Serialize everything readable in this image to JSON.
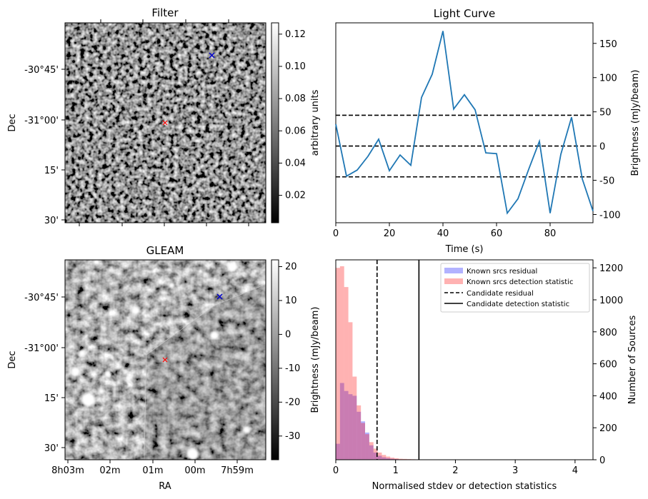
{
  "figure": {
    "colors": {
      "light_curve": "#1f77b4",
      "known_residual": "#0000ff",
      "known_detection": "#ff0000",
      "marker_candidate": "#ff0000",
      "marker_other": "#0000cc"
    }
  },
  "chart_data": [
    {
      "type": "heatmap",
      "title": "Filter",
      "xlabel": "",
      "ylabel": "Dec",
      "y_ticks": [
        "-30°45'",
        "-31°00'",
        "15'",
        "30'"
      ],
      "colorbar": {
        "label": "arbitrary units",
        "ticks": [
          "0.12",
          "0.10",
          "0.08",
          "0.06",
          "0.04",
          "0.02"
        ],
        "range": [
          0.003,
          0.127
        ]
      },
      "markers": [
        {
          "name": "candidate",
          "symbol": "x",
          "color": "red"
        },
        {
          "name": "reference",
          "symbol": "x",
          "color": "blue"
        }
      ]
    },
    {
      "type": "line",
      "title": "Light Curve",
      "xlabel": "Time (s)",
      "ylabel": "Brightness (mJy/beam)",
      "xlim": [
        0,
        96
      ],
      "ylim": [
        -112,
        180
      ],
      "x_ticks": [
        "0",
        "20",
        "40",
        "60",
        "80"
      ],
      "y_ticks": [
        "150",
        "100",
        "50",
        "0",
        "-50",
        "-100"
      ],
      "x": [
        0,
        4,
        8,
        12,
        16,
        20,
        24,
        28,
        32,
        36,
        40,
        44,
        48,
        52,
        56,
        60,
        64,
        68,
        72,
        76,
        80,
        84,
        88,
        92,
        96
      ],
      "values": [
        32,
        -44,
        -35,
        -15,
        10,
        -36,
        -13,
        -28,
        71,
        105,
        168,
        54,
        75,
        53,
        -10,
        -11,
        -98,
        -77,
        -34,
        7,
        -98,
        -12,
        42,
        -48,
        -95
      ],
      "hlines": [
        45,
        0,
        -45
      ]
    },
    {
      "type": "heatmap",
      "title": "GLEAM",
      "xlabel": "RA",
      "ylabel": "Dec",
      "x_ticks": [
        "8h03m",
        "02m",
        "01m",
        "00m",
        "7h59m"
      ],
      "y_ticks": [
        "-30°45'",
        "-31°00'",
        "15'",
        "30'"
      ],
      "colorbar": {
        "label": "Brightness (mJy/beam)",
        "ticks": [
          "20",
          "10",
          "0",
          "-10",
          "-20",
          "-30"
        ],
        "range": [
          -37,
          22
        ]
      },
      "markers": [
        {
          "name": "candidate",
          "symbol": "x",
          "color": "red"
        },
        {
          "name": "reference",
          "symbol": "x",
          "color": "blue"
        }
      ]
    },
    {
      "type": "bar",
      "title": "",
      "xlabel": "Normalised stdev or detection statistics",
      "ylabel": "Number of Sources",
      "xlim": [
        0,
        4.3
      ],
      "ylim": [
        0,
        1250
      ],
      "x_ticks": [
        "0",
        "1",
        "2",
        "3",
        "4"
      ],
      "y_ticks": [
        "1200",
        "1000",
        "800",
        "600",
        "400",
        "200",
        "0"
      ],
      "bin_width": 0.07,
      "series": [
        {
          "name": "Known srcs residual",
          "values": [
            100,
            480,
            430,
            410,
            400,
            300,
            240,
            170,
            90,
            45,
            25,
            15,
            10,
            6,
            4,
            2,
            1
          ]
        },
        {
          "name": "Known srcs detection statistic",
          "values": [
            1200,
            1210,
            1080,
            860,
            520,
            340,
            230,
            160,
            110,
            70,
            45,
            30,
            20,
            13,
            9,
            6,
            5,
            4,
            3,
            2,
            2,
            1,
            1,
            1
          ]
        }
      ],
      "vlines": [
        {
          "name": "Candidate residual",
          "x": 0.69,
          "style": "dashed"
        },
        {
          "name": "Candidate detection statistic",
          "x": 1.39,
          "style": "solid"
        }
      ],
      "legend_position": "top-right"
    }
  ]
}
